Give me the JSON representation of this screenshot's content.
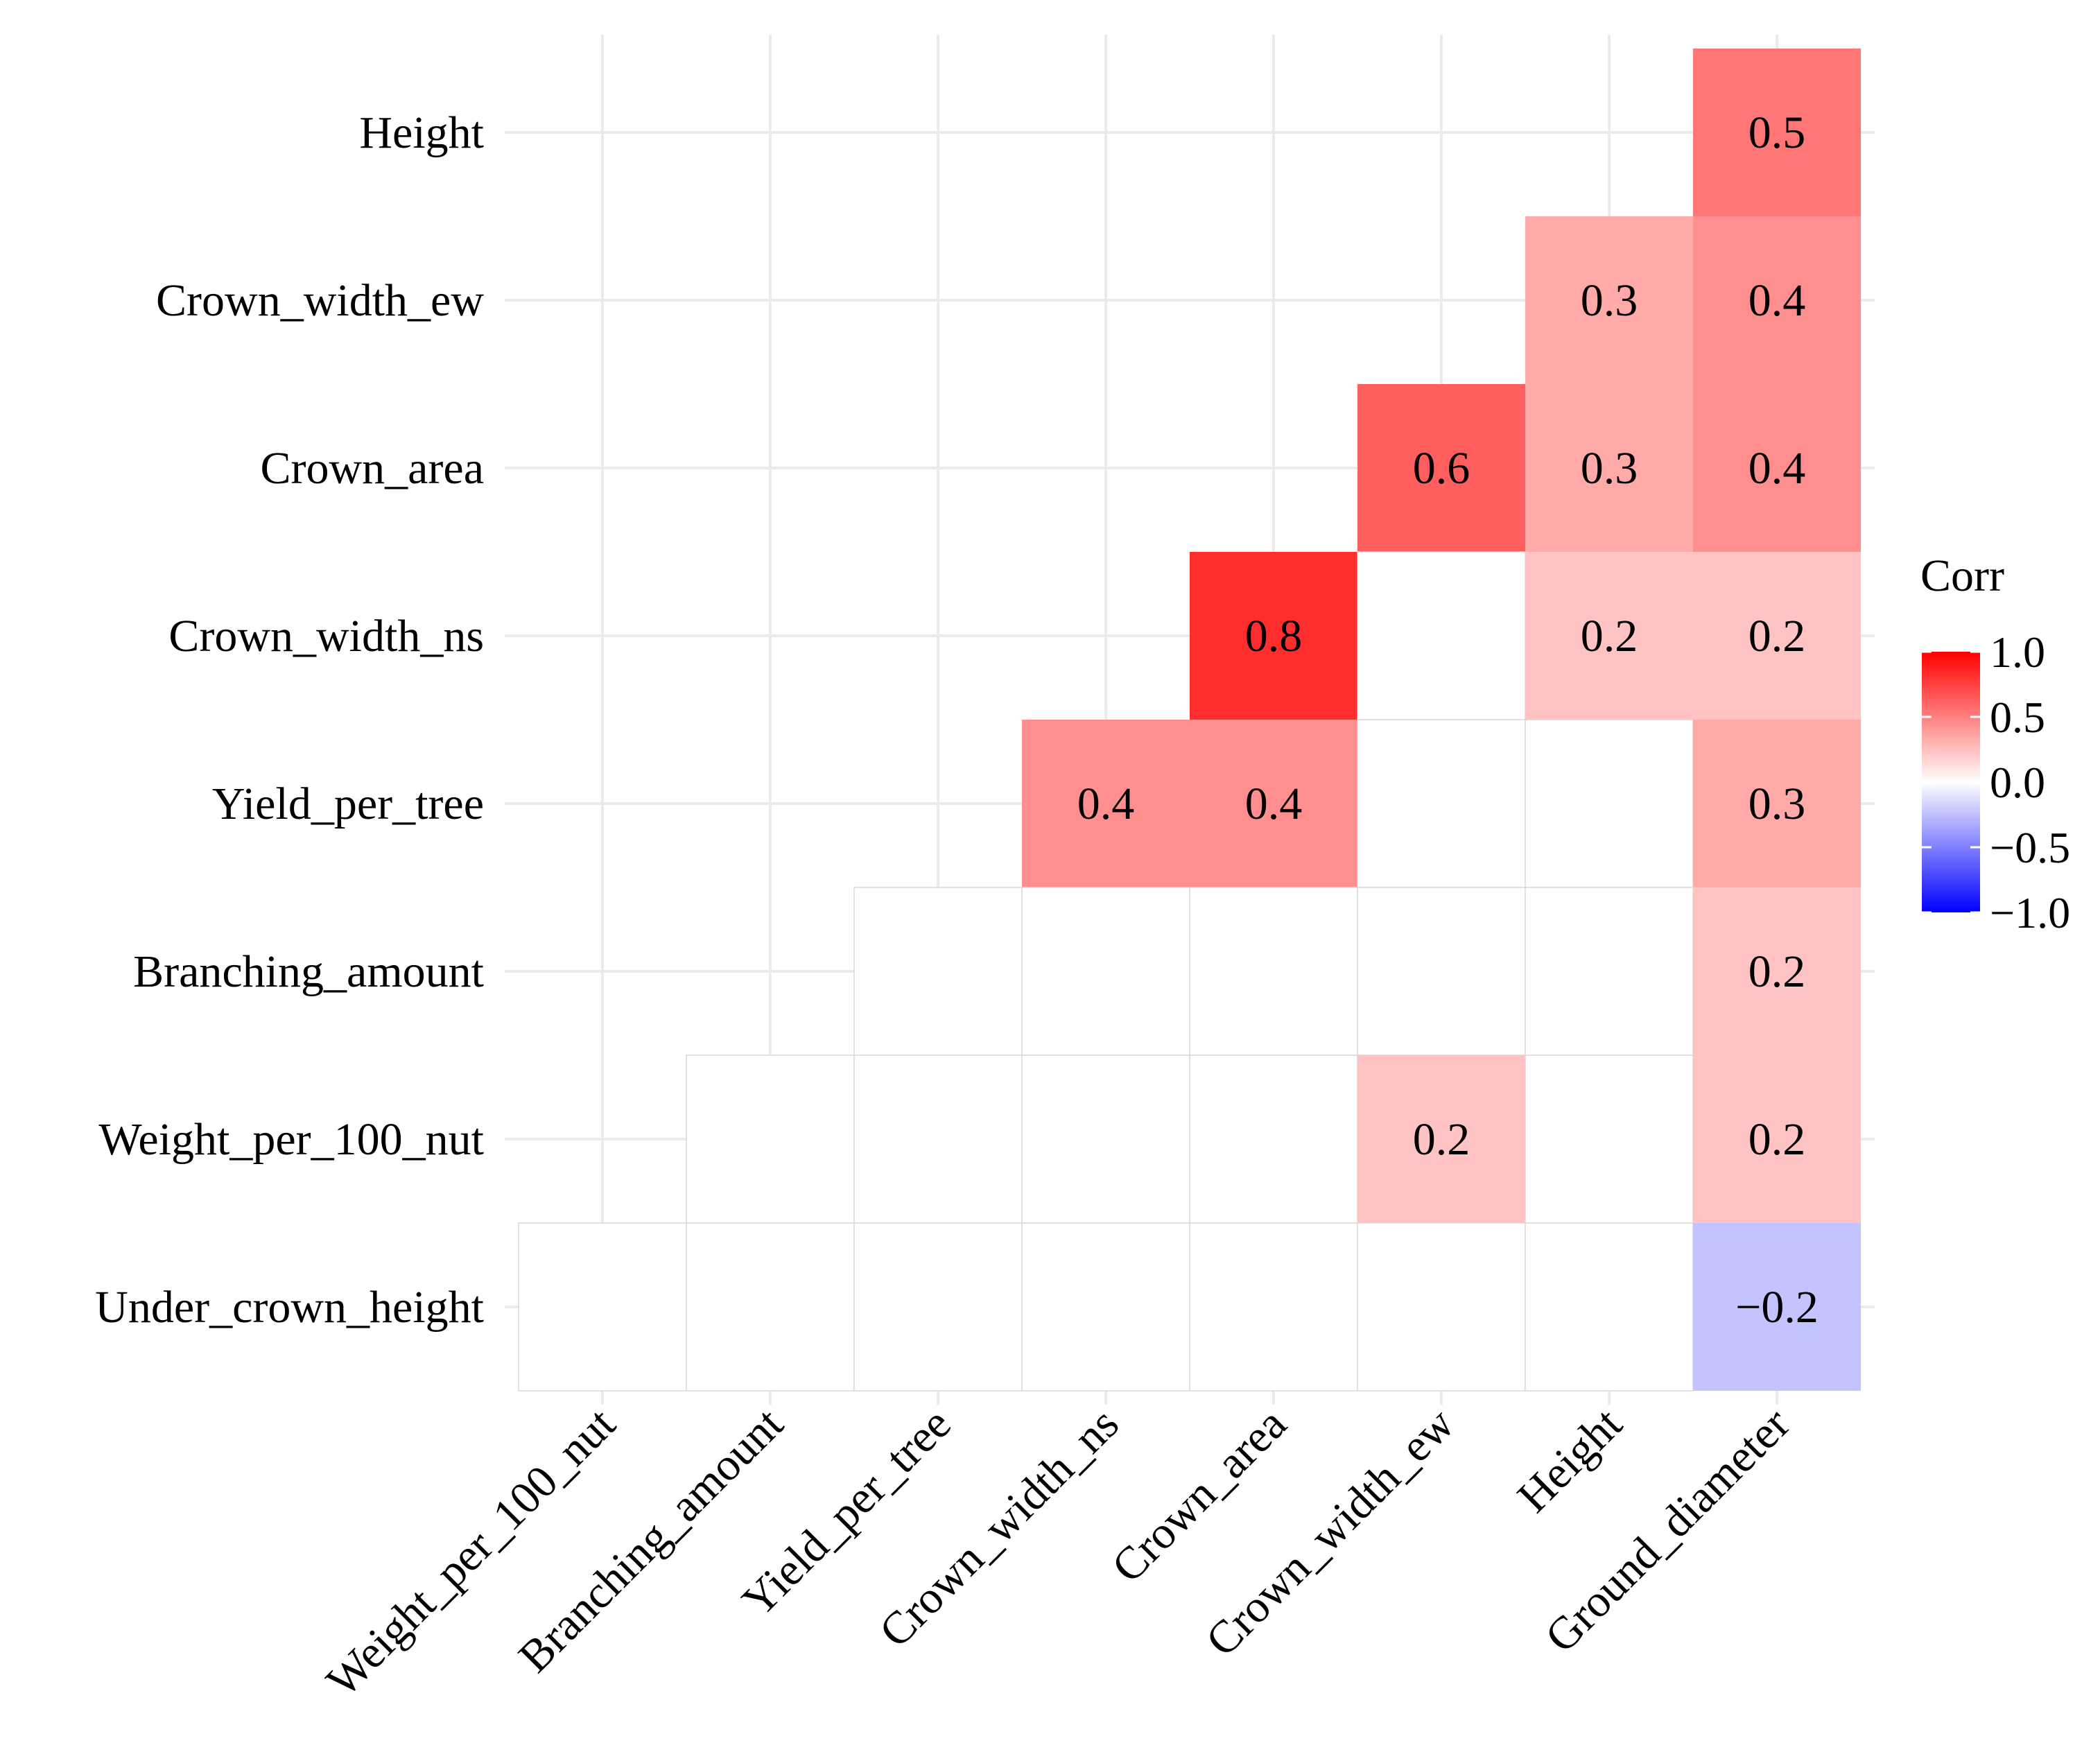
{
  "chart_data": {
    "type": "heatmap",
    "title": "",
    "x_categories": [
      "Weight_per_100_nut",
      "Branching_amount",
      "Yield_per_tree",
      "Crown_width_ns",
      "Crown_area",
      "Crown_width_ew",
      "Height",
      "Ground_diameter"
    ],
    "y_categories": [
      "Height",
      "Crown_width_ew",
      "Crown_area",
      "Crown_width_ns",
      "Yield_per_tree",
      "Branching_amount",
      "Weight_per_100_nut",
      "Under_crown_height"
    ],
    "x_label_colors": [
      "#000000",
      "#000000",
      "#000000",
      "#000000",
      "#000000",
      "#000000",
      "#000000",
      "#0000ff"
    ],
    "y_label_colors": [
      "#000000",
      "#000000",
      "#000000",
      "#000000",
      "#ff0000",
      "#000000",
      "#ff0000",
      "#000000"
    ],
    "row_start": [
      7,
      6,
      5,
      4,
      3,
      2,
      1,
      0
    ],
    "values": [
      [
        null,
        null,
        null,
        null,
        null,
        null,
        null,
        0.5
      ],
      [
        null,
        null,
        null,
        null,
        null,
        null,
        0.3,
        0.4
      ],
      [
        null,
        null,
        null,
        null,
        null,
        0.6,
        0.3,
        0.4
      ],
      [
        null,
        null,
        null,
        null,
        0.8,
        0.0,
        0.2,
        0.2
      ],
      [
        null,
        null,
        null,
        0.4,
        0.4,
        0.0,
        0.0,
        0.3
      ],
      [
        null,
        null,
        0.0,
        0.0,
        0.0,
        0.0,
        0.0,
        0.2
      ],
      [
        null,
        0.0,
        0.0,
        0.0,
        0.0,
        0.2,
        0.0,
        0.2
      ],
      [
        0.0,
        0.0,
        0.0,
        0.0,
        0.0,
        0.0,
        0.0,
        -0.2
      ]
    ],
    "labels": [
      [
        "",
        "",
        "",
        "",
        "",
        "",
        "",
        "0.5"
      ],
      [
        "",
        "",
        "",
        "",
        "",
        "",
        "0.3",
        "0.4"
      ],
      [
        "",
        "",
        "",
        "",
        "",
        "0.6",
        "0.3",
        "0.4"
      ],
      [
        "",
        "",
        "",
        "",
        "0.8",
        "",
        "0.2",
        "0.2"
      ],
      [
        "",
        "",
        "",
        "0.4",
        "0.4",
        "",
        "",
        "0.3"
      ],
      [
        "",
        "",
        "",
        "",
        "",
        "",
        "",
        "0.2"
      ],
      [
        "",
        "",
        "",
        "",
        "",
        "0.2",
        "",
        "0.2"
      ],
      [
        "",
        "",
        "",
        "",
        "",
        "",
        "",
        "−0.2"
      ]
    ],
    "legend": {
      "title": "Corr",
      "ticks": [
        "1.0",
        "0.5",
        "0.0",
        "−0.5",
        "−1.0"
      ],
      "tick_values": [
        1.0,
        0.5,
        0.0,
        -0.5,
        -1.0
      ],
      "range": [
        -1,
        1
      ],
      "low_color": "#0000ff",
      "mid_color": "#ffffff",
      "high_color": "#ff0000"
    }
  }
}
